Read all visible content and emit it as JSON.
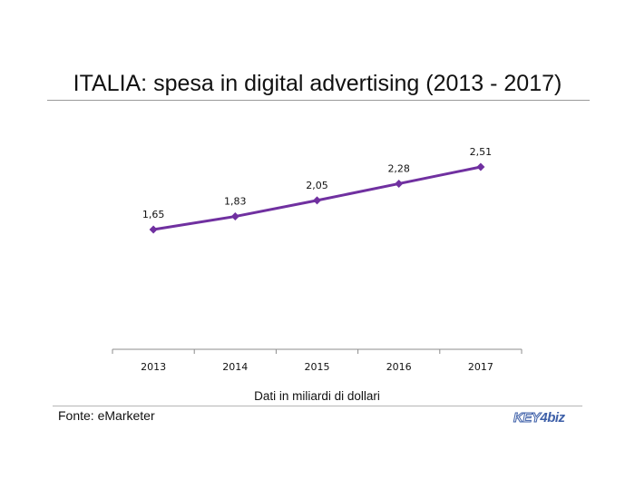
{
  "chart_data": {
    "type": "line",
    "title": "ITALIA: spesa in digital advertising (2013 - 2017)",
    "xlabel": "Dati in miliardi di dollari",
    "ylabel": "",
    "categories": [
      "2013",
      "2014",
      "2015",
      "2016",
      "2017"
    ],
    "series": [
      {
        "values": [
          1.65,
          1.83,
          2.05,
          2.28,
          2.51
        ],
        "labels": [
          "1,65",
          "1,83",
          "2,05",
          "2,28",
          "2,51"
        ],
        "color": "#7030a0",
        "marker": "diamond"
      }
    ],
    "ylim": [
      0,
      3
    ],
    "grid": false,
    "legend": "none"
  },
  "source": "Fonte: eMarketer",
  "logo": {
    "key": "KEY",
    "sep": "4",
    "biz": "biz"
  }
}
